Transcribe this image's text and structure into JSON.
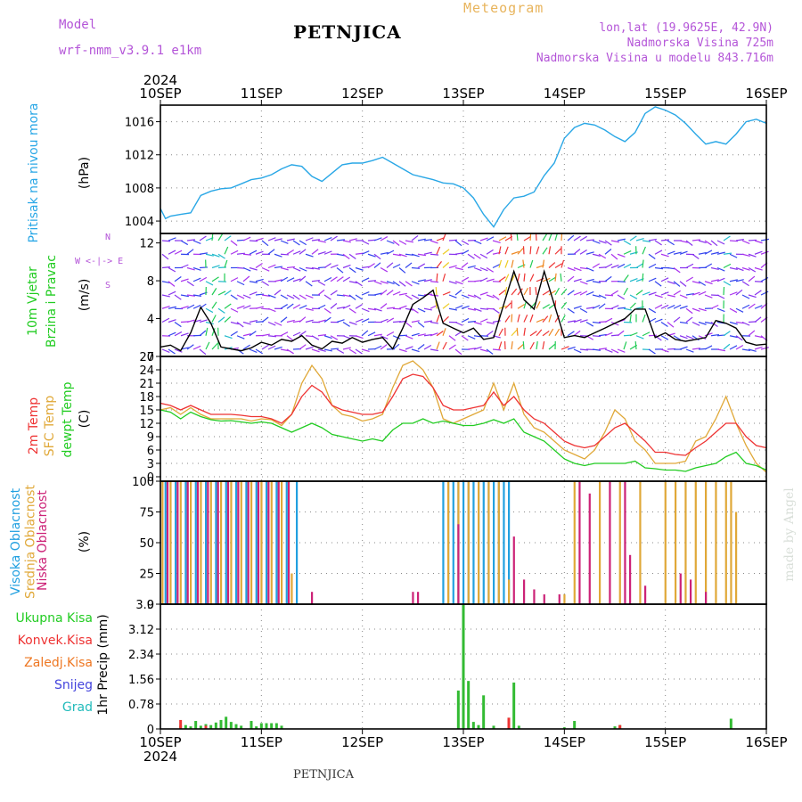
{
  "header": {
    "model_label": "Model",
    "model_name": "wrf-nmm_v3.9.1  e1km",
    "title": "PETNJICA",
    "meteogram": "Meteogram",
    "lonlat": "lon,lat (19.9625E, 42.9N)",
    "altitude": "Nadmorska Visina 725m",
    "model_altitude": "Nadmorska Visina u modelu 843.716m",
    "footer_title": "PETNJICA",
    "credit": "made by Angel"
  },
  "x_axis": {
    "year": "2024",
    "ticks": [
      "10SEP",
      "11SEP",
      "12SEP",
      "13SEP",
      "14SEP",
      "15SEP",
      "16SEP"
    ],
    "range_days": [
      0,
      6
    ]
  },
  "panel_labels": {
    "pressure": {
      "name": "Pritisak na nivou mora",
      "unit": "(hPa)"
    },
    "wind": {
      "name1": "10m Vjetar",
      "name2": "Brzina i Pravac",
      "unit": "(m/s)",
      "compass": "W <-|-> E",
      "compass_n": "N",
      "compass_s": "S"
    },
    "temp": {
      "t2m": "2m Temp",
      "sfc": "SFC Temp",
      "dew": "dewpt Temp",
      "unit": "(C)"
    },
    "cloud": {
      "high": "Visoka Oblacnost",
      "mid": "Srednja Oblacnost",
      "low": "Niska Oblacnost",
      "unit": "(%)"
    },
    "precip": {
      "unit": "1hr Precip (mm)",
      "legend": [
        "Ukupna Kisa",
        "Konvek.Kisa",
        "Zaledj.Kisa",
        "Snijeg",
        "Grad"
      ]
    }
  },
  "colors": {
    "pressure": "#29a7e6",
    "wind_speed": "#000000",
    "wind_red": "#ff2a2a",
    "t2m": "#ee3333",
    "sfc": "#e0a838",
    "dew": "#22cc22",
    "cloud_high": "#22a0e0",
    "cloud_mid": "#e0a838",
    "cloud_low": "#cc2277",
    "precip_total": "#33bb33",
    "precip_conv": "#ee3333",
    "precip_frz": "#ee7722",
    "precip_snow": "#4444dd",
    "precip_hail": "#22bbbb"
  },
  "chart_data": [
    {
      "type": "line",
      "name": "pressure",
      "ylim": [
        1002.5,
        1018
      ],
      "yticks": [
        1004,
        1008,
        1012,
        1016
      ],
      "x": [
        0,
        0.05,
        0.1,
        0.2,
        0.3,
        0.4,
        0.5,
        0.6,
        0.7,
        0.8,
        0.9,
        1.0,
        1.1,
        1.2,
        1.3,
        1.4,
        1.5,
        1.6,
        1.7,
        1.8,
        1.9,
        2.0,
        2.1,
        2.2,
        2.3,
        2.4,
        2.5,
        2.6,
        2.7,
        2.8,
        2.9,
        3.0,
        3.1,
        3.2,
        3.3,
        3.4,
        3.5,
        3.6,
        3.7,
        3.8,
        3.9,
        4.0,
        4.1,
        4.2,
        4.3,
        4.4,
        4.5,
        4.6,
        4.7,
        4.8,
        4.9,
        5.0,
        5.1,
        5.2,
        5.3,
        5.4,
        5.5,
        5.6,
        5.7,
        5.8,
        5.9,
        6.0
      ],
      "values": [
        1005.5,
        1004.3,
        1004.6,
        1004.8,
        1005,
        1007.1,
        1007.6,
        1007.9,
        1008,
        1008.5,
        1009,
        1009.2,
        1009.6,
        1010.3,
        1010.8,
        1010.6,
        1009.4,
        1008.8,
        1009.8,
        1010.8,
        1011.0,
        1011.0,
        1011.3,
        1011.7,
        1011.0,
        1010.3,
        1009.6,
        1009.3,
        1009.0,
        1008.6,
        1008.5,
        1008.0,
        1006.8,
        1004.8,
        1003.3,
        1005.4,
        1006.8,
        1007.0,
        1007.5,
        1009.5,
        1011.0,
        1014.0,
        1015.3,
        1015.8,
        1015.6,
        1015.0,
        1014.2,
        1013.6,
        1014.7,
        1017.0,
        1017.8,
        1017.4,
        1016.8,
        1015.8,
        1014.5,
        1013.3,
        1013.6,
        1013.3,
        1014.5,
        1016.0,
        1016.3,
        1015.8
      ]
    },
    {
      "type": "line",
      "name": "wind speed",
      "ylim": [
        0,
        13
      ],
      "yticks": [
        0,
        4,
        8,
        12
      ],
      "x": [
        0,
        0.1,
        0.2,
        0.3,
        0.4,
        0.5,
        0.6,
        0.7,
        0.8,
        0.9,
        1.0,
        1.1,
        1.2,
        1.3,
        1.4,
        1.5,
        1.6,
        1.7,
        1.8,
        1.9,
        2.0,
        2.1,
        2.2,
        2.3,
        2.4,
        2.5,
        2.6,
        2.7,
        2.8,
        2.9,
        3.0,
        3.1,
        3.2,
        3.3,
        3.4,
        3.5,
        3.6,
        3.7,
        3.8,
        3.9,
        4.0,
        4.1,
        4.2,
        4.3,
        4.4,
        4.5,
        4.6,
        4.7,
        4.8,
        4.9,
        5.0,
        5.1,
        5.2,
        5.3,
        5.4,
        5.5,
        5.6,
        5.7,
        5.8,
        5.9,
        6.0
      ],
      "values": [
        1.0,
        1.2,
        0.6,
        2.5,
        5.2,
        3.5,
        1.0,
        0.8,
        0.6,
        0.9,
        1.5,
        1.2,
        1.8,
        1.6,
        2.2,
        1.2,
        0.8,
        1.6,
        1.4,
        2.0,
        1.5,
        1.8,
        2.0,
        0.8,
        3.0,
        5.5,
        6.2,
        7.0,
        3.5,
        3.0,
        2.5,
        3.0,
        1.8,
        2.0,
        5.5,
        9.0,
        6.0,
        5.0,
        9.0,
        5.5,
        2.0,
        2.2,
        2.0,
        2.5,
        3.0,
        3.5,
        4.0,
        5.0,
        5.0,
        2.0,
        2.5,
        1.8,
        1.6,
        1.8,
        2.0,
        3.8,
        3.5,
        3.0,
        1.5,
        1.2,
        1.3
      ]
    },
    {
      "type": "line",
      "name": "temperature",
      "ylim": [
        -1,
        27
      ],
      "yticks": [
        0,
        3,
        6,
        9,
        12,
        15,
        18,
        21,
        24,
        27
      ],
      "x": [
        0,
        0.1,
        0.2,
        0.3,
        0.4,
        0.5,
        0.6,
        0.7,
        0.8,
        0.9,
        1.0,
        1.1,
        1.2,
        1.3,
        1.4,
        1.5,
        1.6,
        1.7,
        1.8,
        1.9,
        2.0,
        2.1,
        2.2,
        2.3,
        2.4,
        2.5,
        2.6,
        2.7,
        2.8,
        2.9,
        3.0,
        3.1,
        3.2,
        3.3,
        3.4,
        3.5,
        3.6,
        3.7,
        3.8,
        3.9,
        4.0,
        4.1,
        4.2,
        4.3,
        4.4,
        4.5,
        4.6,
        4.7,
        4.8,
        4.9,
        5.0,
        5.1,
        5.2,
        5.3,
        5.4,
        5.5,
        5.6,
        5.7,
        5.8,
        5.9,
        6.0
      ],
      "series": [
        {
          "name": "2m Temp",
          "values": [
            16.5,
            16,
            15,
            16,
            15,
            14,
            14,
            14,
            13.8,
            13.5,
            13.5,
            13,
            12,
            14,
            18,
            20.5,
            19,
            16,
            15,
            14.5,
            14,
            14,
            14.5,
            18,
            22,
            23,
            22.5,
            20,
            16,
            15,
            15,
            15.5,
            16,
            19,
            16,
            18,
            15,
            13,
            12,
            10,
            8,
            7,
            6.5,
            7,
            9,
            11,
            12,
            10,
            8,
            5.5,
            5.5,
            5.0,
            4.8,
            6.5,
            8,
            10,
            12,
            12,
            9,
            7,
            6.5
          ]
        },
        {
          "name": "SFC Temp",
          "values": [
            15,
            15.5,
            14,
            15.5,
            14,
            13,
            13,
            13,
            13,
            12.5,
            13,
            12.8,
            11.5,
            14,
            21,
            25,
            22,
            16,
            14,
            13.5,
            12.5,
            13,
            14,
            20,
            25,
            26,
            24,
            20,
            13,
            12,
            13,
            14,
            15,
            21,
            15,
            21,
            14,
            11,
            10,
            8,
            6,
            5,
            4,
            6,
            10,
            15,
            13,
            8,
            6,
            3,
            3,
            3,
            3.5,
            8,
            9,
            13,
            18,
            12,
            7,
            3,
            1
          ]
        },
        {
          "name": "dewpt Temp",
          "values": [
            15,
            14.5,
            13,
            14.5,
            13.5,
            12.8,
            12.5,
            12.6,
            12.3,
            12,
            12.3,
            12,
            11,
            10,
            11,
            12,
            11,
            9.5,
            9,
            8.5,
            8,
            8.5,
            8,
            10.5,
            12,
            12,
            13,
            12,
            12.5,
            12,
            11.5,
            11.5,
            12,
            12.8,
            12,
            13,
            10,
            9,
            8,
            6,
            4,
            3,
            2.5,
            3,
            3,
            3,
            3,
            3.5,
            2,
            1.8,
            1.5,
            1.5,
            1.2,
            2,
            2.5,
            3,
            4.5,
            5.5,
            3,
            2.5,
            1.5
          ]
        }
      ]
    },
    {
      "type": "bar",
      "name": "cloud cover",
      "ylim": [
        0,
        100
      ],
      "yticks": [
        0,
        25,
        50,
        75,
        100
      ],
      "series": [
        {
          "name": "Visoka Oblacnost",
          "x": [
            0.05,
            0.15,
            0.25,
            0.35,
            0.45,
            0.55,
            0.65,
            0.75,
            0.85,
            0.95,
            1.05,
            1.15,
            1.25,
            1.35,
            2.8,
            2.85,
            2.9,
            2.95,
            3.0,
            3.05,
            3.1,
            3.15,
            3.2,
            3.25,
            3.3,
            3.35,
            3.4,
            3.45
          ],
          "values": [
            100,
            100,
            100,
            100,
            100,
            100,
            100,
            100,
            100,
            100,
            100,
            100,
            100,
            100,
            100,
            100,
            100,
            100,
            100,
            100,
            100,
            100,
            100,
            100,
            100,
            100,
            100,
            100
          ]
        },
        {
          "name": "Srednja Oblacnost",
          "x": [
            0.02,
            0.1,
            0.2,
            0.3,
            0.4,
            0.5,
            0.6,
            0.7,
            0.8,
            0.9,
            1.0,
            1.1,
            1.2,
            1.3,
            2.85,
            2.95,
            3.05,
            3.15,
            3.25,
            3.35,
            3.45,
            4.0,
            4.1,
            4.35,
            4.55,
            4.75,
            5.0,
            5.1,
            5.2,
            5.3,
            5.4,
            5.5,
            5.6,
            5.65,
            5.7
          ],
          "values": [
            100,
            100,
            100,
            100,
            100,
            100,
            100,
            100,
            100,
            100,
            100,
            100,
            100,
            25,
            100,
            100,
            100,
            100,
            100,
            100,
            20,
            8,
            100,
            100,
            100,
            100,
            100,
            100,
            100,
            100,
            100,
            100,
            100,
            100,
            75
          ]
        },
        {
          "name": "Niska Oblacnost",
          "x": [
            0.07,
            0.17,
            0.27,
            0.37,
            0.47,
            0.57,
            0.67,
            0.77,
            0.87,
            0.97,
            1.07,
            1.17,
            1.27,
            1.5,
            2.5,
            2.55,
            2.95,
            3.5,
            3.6,
            3.7,
            3.8,
            3.95,
            4.15,
            4.25,
            4.45,
            4.6,
            4.65,
            4.8,
            5.15,
            5.25,
            5.4
          ],
          "values": [
            100,
            100,
            100,
            100,
            100,
            100,
            100,
            100,
            100,
            100,
            100,
            100,
            100,
            10,
            10,
            10,
            65,
            55,
            20,
            12,
            8,
            8,
            100,
            90,
            100,
            100,
            40,
            15,
            25,
            20,
            10
          ]
        }
      ]
    },
    {
      "type": "bar",
      "name": "precipitation",
      "ylim": [
        0,
        3.9
      ],
      "yticks": [
        0,
        0.78,
        1.56,
        2.34,
        3.12,
        3.9
      ],
      "x": [
        0.2,
        0.25,
        0.3,
        0.35,
        0.4,
        0.45,
        0.5,
        0.55,
        0.6,
        0.65,
        0.7,
        0.75,
        0.8,
        0.9,
        0.95,
        1.0,
        1.05,
        1.1,
        1.15,
        1.2,
        2.95,
        3.0,
        3.05,
        3.1,
        3.15,
        3.2,
        3.3,
        3.45,
        3.5,
        3.55,
        4.0,
        4.1,
        4.5,
        4.55,
        5.65
      ],
      "values": [
        0.1,
        0.12,
        0.08,
        0.25,
        0.1,
        0.15,
        0.12,
        0.2,
        0.28,
        0.38,
        0.22,
        0.15,
        0.1,
        0.25,
        0.08,
        0.18,
        0.18,
        0.18,
        0.18,
        0.1,
        1.2,
        3.88,
        1.5,
        0.22,
        0.12,
        1.05,
        0.1,
        0.35,
        1.45,
        0.1,
        0.05,
        0.25,
        0.08,
        0.12,
        0.32
      ],
      "conv_x": [
        0.2,
        0.45,
        3.45,
        4.55
      ],
      "conv_values": [
        0.28,
        0.1,
        0.35,
        0.12
      ]
    }
  ]
}
